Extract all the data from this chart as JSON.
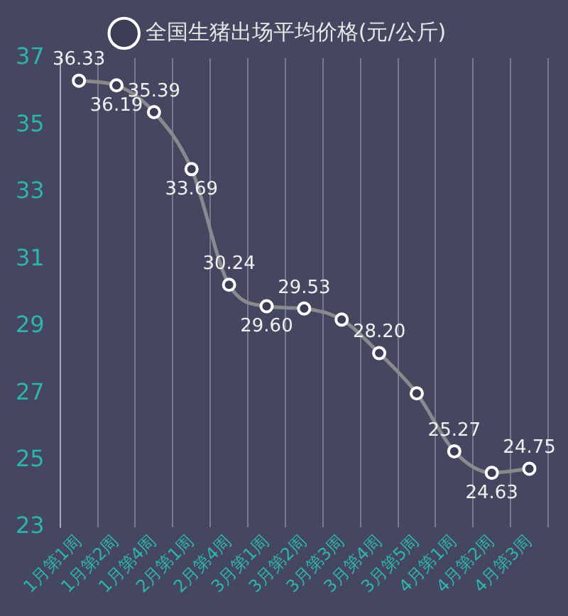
{
  "chart_data": {
    "type": "line",
    "categories": [
      "1月第1周",
      "1月第2周",
      "1月第4周",
      "2月第1周",
      "2月第4周",
      "3月第1周",
      "3月第2周",
      "3月第3周",
      "3月第4周",
      "3月第5周",
      "4月第1周",
      "4月第2周",
      "4月第3周"
    ],
    "series": [
      {
        "name": "全国生猪出场平均价格(元/公斤)",
        "color": "#8a8a8e",
        "values": [
          36.33,
          36.19,
          35.39,
          33.69,
          30.24,
          29.6,
          29.53,
          29.2,
          28.2,
          27.0,
          25.27,
          24.63,
          24.75
        ],
        "value_labels": [
          "36.33",
          "36.19",
          "35.39",
          "33.69",
          "30.24",
          "29.60",
          "29.53",
          null,
          "28.20",
          null,
          "25.27",
          "24.63",
          "24.75"
        ]
      }
    ],
    "ylim": [
      23,
      37
    ],
    "yticks": [
      23,
      25,
      27,
      29,
      31,
      33,
      35,
      37
    ],
    "grid": "x",
    "legend": "top",
    "marker": "circle",
    "line_style": "solid"
  }
}
